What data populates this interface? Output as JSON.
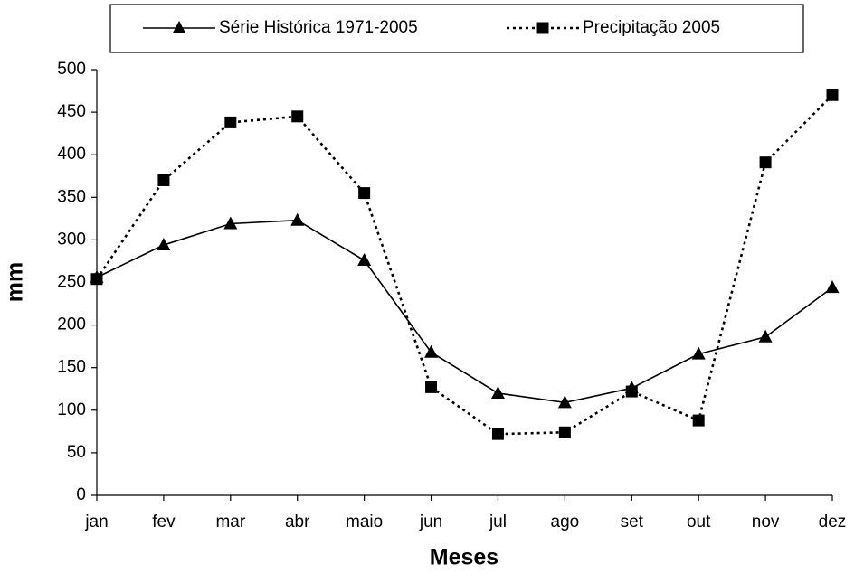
{
  "chart_data": {
    "type": "line",
    "x_label": "Meses",
    "y_label": "mm",
    "categories": [
      "jan",
      "fev",
      "mar",
      "abr",
      "maio",
      "jun",
      "jul",
      "ago",
      "set",
      "out",
      "nov",
      "dez"
    ],
    "series": [
      {
        "name": "Série Histórica 1971-2005",
        "color": "#000000",
        "line_style": "solid",
        "marker": "triangle",
        "values": [
          256,
          294,
          319,
          323,
          276,
          168,
          120,
          109,
          126,
          166,
          186,
          244
        ]
      },
      {
        "name": "Precipitação 2005",
        "color": "#000000",
        "line_style": "dotted",
        "marker": "square",
        "values": [
          254,
          370,
          438,
          445,
          355,
          127,
          72,
          74,
          122,
          88,
          391,
          470
        ]
      }
    ],
    "ylim": [
      0,
      500
    ],
    "yticks": [
      0,
      50,
      100,
      150,
      200,
      250,
      300,
      350,
      400,
      450,
      500
    ],
    "grid": false,
    "legend_position": "top"
  }
}
